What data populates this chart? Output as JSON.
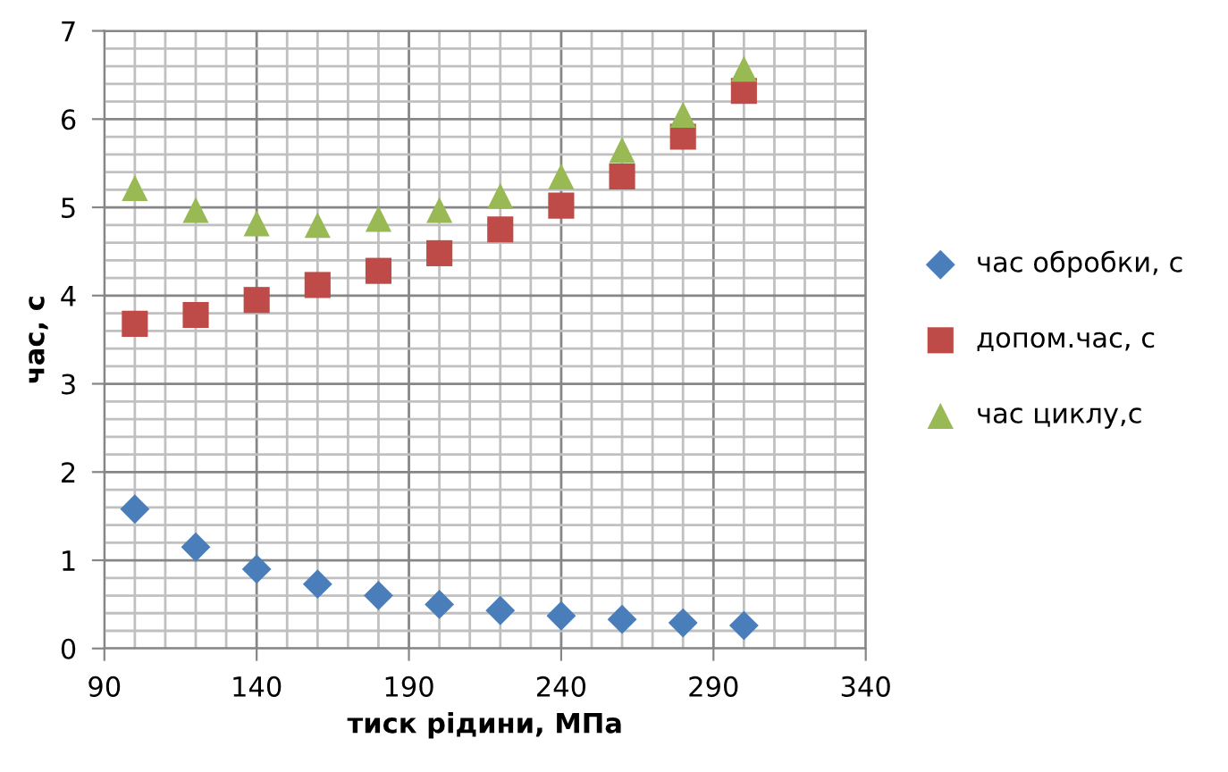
{
  "chart_data": {
    "type": "scatter",
    "xlabel": "тиск рідини, МПа",
    "ylabel": "час, с",
    "x": [
      100,
      120,
      140,
      160,
      180,
      200,
      220,
      240,
      260,
      280,
      300
    ],
    "series": [
      {
        "name": "час обробки, с",
        "color": "#4a7ebb",
        "marker": "diamond",
        "values": [
          1.58,
          1.15,
          0.9,
          0.73,
          0.6,
          0.5,
          0.43,
          0.37,
          0.33,
          0.29,
          0.26
        ]
      },
      {
        "name": "допом.час, с",
        "color": "#be4b48",
        "marker": "square",
        "values": [
          3.68,
          3.78,
          3.95,
          4.12,
          4.28,
          4.48,
          4.75,
          5.02,
          5.35,
          5.8,
          6.32
        ]
      },
      {
        "name": "час циклу,с",
        "color": "#98b954",
        "marker": "triangle",
        "values": [
          5.22,
          4.97,
          4.82,
          4.8,
          4.87,
          4.97,
          5.13,
          5.35,
          5.65,
          6.05,
          6.57
        ]
      }
    ],
    "xlim": [
      90,
      340
    ],
    "xticks": [
      90,
      {
        "value": 100,
        "label": null
      },
      {
        "value": 110,
        "label": null
      },
      {
        "value": 120,
        "label": null
      },
      {
        "value": 130,
        "label": null
      },
      140,
      {
        "value": 150,
        "label": null
      },
      {
        "value": 160,
        "label": null
      },
      {
        "value": 170,
        "label": null
      },
      {
        "value": 180,
        "label": null
      },
      190,
      {
        "value": 200,
        "label": null
      },
      {
        "value": 210,
        "label": null
      },
      {
        "value": 220,
        "label": null
      },
      {
        "value": 230,
        "label": null
      },
      240,
      {
        "value": 250,
        "label": null
      },
      {
        "value": 260,
        "label": null
      },
      {
        "value": 270,
        "label": null
      },
      {
        "value": 280,
        "label": null
      },
      290,
      {
        "value": 300,
        "label": null
      },
      {
        "value": 310,
        "label": null
      },
      {
        "value": 320,
        "label": null
      },
      {
        "value": 330,
        "label": null
      },
      340
    ],
    "ylim": [
      0,
      7
    ],
    "yticks": [
      0,
      {
        "value": 0.2,
        "label": null
      },
      {
        "value": 0.4,
        "label": null
      },
      {
        "value": 0.6,
        "label": null
      },
      {
        "value": 0.8,
        "label": null
      },
      1,
      {
        "value": 1.2,
        "label": null
      },
      {
        "value": 1.4,
        "label": null
      },
      {
        "value": 1.6,
        "label": null
      },
      {
        "value": 1.8,
        "label": null
      },
      2,
      {
        "value": 2.2,
        "label": null
      },
      {
        "value": 2.4,
        "label": null
      },
      {
        "value": 2.6,
        "label": null
      },
      {
        "value": 2.8,
        "label": null
      },
      3,
      {
        "value": 3.2,
        "label": null
      },
      {
        "value": 3.4,
        "label": null
      },
      {
        "value": 3.6,
        "label": null
      },
      {
        "value": 3.8,
        "label": null
      },
      4,
      {
        "value": 4.2,
        "label": null
      },
      {
        "value": 4.4,
        "label": null
      },
      {
        "value": 4.6,
        "label": null
      },
      {
        "value": 4.8,
        "label": null
      },
      5,
      {
        "value": 5.2,
        "label": null
      },
      {
        "value": 5.4,
        "label": null
      },
      {
        "value": 5.6,
        "label": null
      },
      {
        "value": 5.8,
        "label": null
      },
      6,
      {
        "value": 6.2,
        "label": null
      },
      {
        "value": 6.4,
        "label": null
      },
      {
        "value": 6.6,
        "label": null
      },
      {
        "value": 6.8,
        "label": null
      },
      7
    ],
    "grid": true,
    "legend": "right"
  }
}
